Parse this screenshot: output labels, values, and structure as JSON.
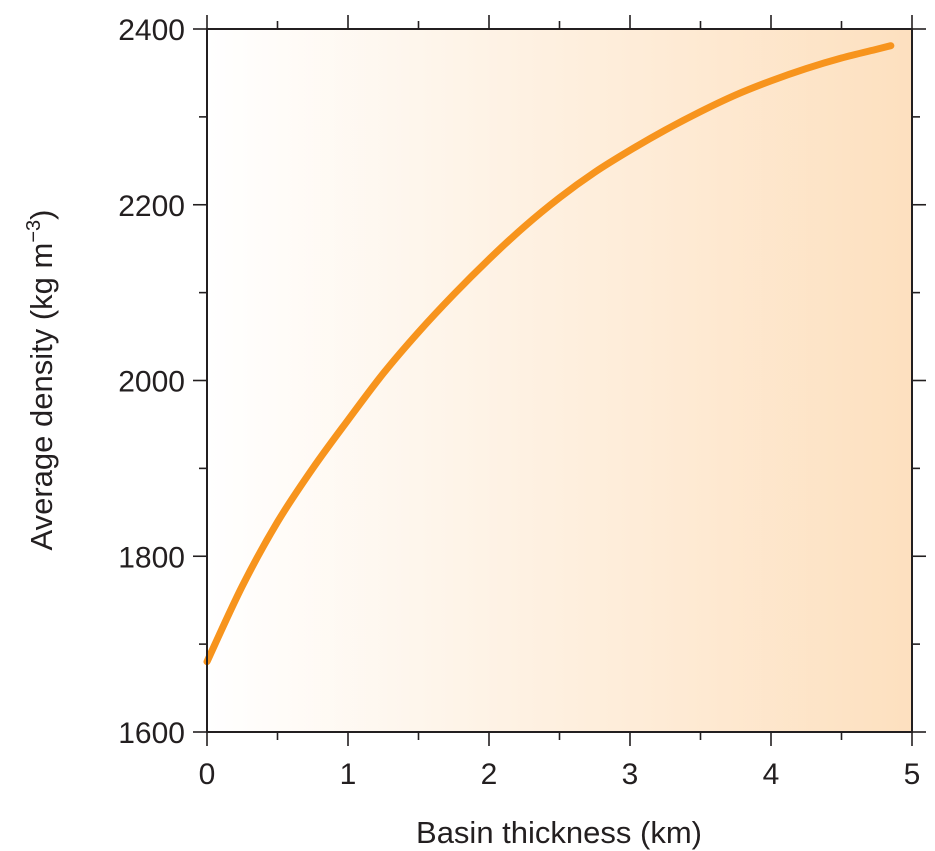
{
  "chart_data": {
    "type": "line",
    "title": "",
    "xlabel": "Basin thickness (km)",
    "ylabel": {
      "main": "Average density (kg m",
      "superscript": "−3",
      "close": ")"
    },
    "xlim": [
      0,
      5
    ],
    "ylim": [
      1600,
      2400
    ],
    "x_ticks": [
      0,
      1,
      2,
      3,
      4,
      5
    ],
    "y_ticks": [
      1600,
      1800,
      2000,
      2200,
      2400
    ],
    "x_minor_step": 0.5,
    "y_minor_step": 100,
    "grid": false,
    "background_gradient": [
      "#ffffff",
      "#fde0bf"
    ],
    "series": [
      {
        "color": "#f7941d",
        "x": [
          0,
          0.25,
          0.5,
          0.75,
          1,
          1.25,
          1.5,
          1.75,
          2,
          2.25,
          2.5,
          2.75,
          3,
          3.25,
          3.5,
          3.75,
          4,
          4.25,
          4.5,
          4.75,
          4.85
        ],
        "y": [
          1680,
          1766,
          1839,
          1900,
          1955,
          2008,
          2055,
          2098,
          2138,
          2175,
          2208,
          2237,
          2262,
          2285,
          2306,
          2325,
          2341,
          2355,
          2367,
          2377,
          2381
        ]
      }
    ]
  }
}
